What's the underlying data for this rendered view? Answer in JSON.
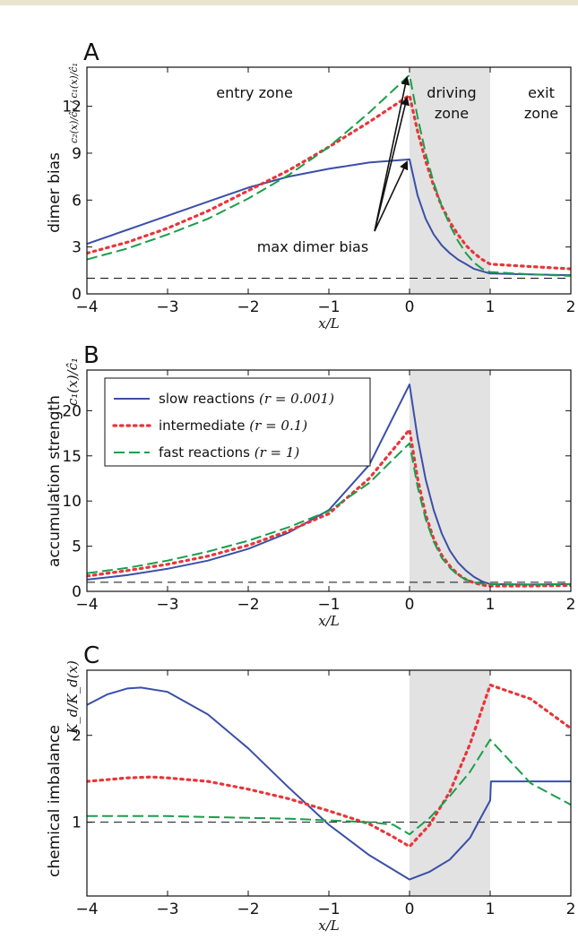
{
  "colors": {
    "slow": "#3a4fa8",
    "intermediate": "#e8353a",
    "fast": "#1a9e4a",
    "shade": "#e2e2e2",
    "top_bar": "#e9e4cf"
  },
  "chart_data": [
    {
      "type": "line",
      "panel": "A",
      "ylabel": "dimer bias",
      "ylabel_math": "c₂(x)/ĉ₂ / c₁(x)/ĉ₁",
      "xlabel": "x/L",
      "xlim": [
        -4,
        2
      ],
      "ylim": [
        0,
        14.5
      ],
      "xticks": [
        "−4",
        "−3",
        "−2",
        "−1",
        "0",
        "1",
        "2"
      ],
      "yticks": [
        "0",
        "3",
        "6",
        "9",
        "12"
      ],
      "ytick_values": [
        0,
        3,
        6,
        9,
        12
      ],
      "shaded_region": [
        0,
        1
      ],
      "reference_line": 1,
      "zone_labels": {
        "entry": "entry zone",
        "driving_1": "driving",
        "driving_2": "zone",
        "exit_1": "exit",
        "exit_2": "zone"
      },
      "annotation": "max dimer bias",
      "series": [
        {
          "key": "slow",
          "x": [
            -4,
            -3.5,
            -3,
            -2.5,
            -2,
            -1.5,
            -1,
            -0.5,
            0,
            0.1,
            0.2,
            0.3,
            0.4,
            0.5,
            0.6,
            0.7,
            0.8,
            0.9,
            1,
            1.5,
            2
          ],
          "values": [
            3.2,
            4.1,
            5.0,
            5.9,
            6.8,
            7.5,
            8.0,
            8.4,
            8.6,
            6.3,
            4.8,
            3.8,
            3.1,
            2.6,
            2.2,
            1.9,
            1.6,
            1.45,
            1.3,
            1.25,
            1.2
          ]
        },
        {
          "key": "intermediate",
          "x": [
            -4,
            -3.5,
            -3,
            -2.5,
            -2,
            -1.5,
            -1,
            -0.5,
            0,
            0.1,
            0.2,
            0.3,
            0.4,
            0.5,
            0.6,
            0.7,
            0.8,
            0.9,
            1,
            1.5,
            2
          ],
          "values": [
            2.6,
            3.3,
            4.2,
            5.3,
            6.6,
            7.9,
            9.4,
            11.0,
            12.7,
            10.4,
            8.5,
            6.9,
            5.6,
            4.6,
            3.8,
            3.1,
            2.6,
            2.2,
            1.9,
            1.75,
            1.6
          ]
        },
        {
          "key": "fast",
          "x": [
            -4,
            -3.5,
            -3,
            -2.5,
            -2,
            -1.5,
            -1,
            -0.5,
            0,
            0.1,
            0.2,
            0.3,
            0.4,
            0.5,
            0.6,
            0.7,
            0.8,
            0.9,
            1,
            1.5,
            2
          ],
          "values": [
            2.2,
            2.9,
            3.8,
            4.8,
            6.1,
            7.6,
            9.4,
            11.6,
            14.0,
            11.3,
            9.0,
            7.1,
            5.6,
            4.4,
            3.4,
            2.6,
            2.0,
            1.6,
            1.4,
            1.25,
            1.15
          ]
        }
      ]
    },
    {
      "type": "line",
      "panel": "B",
      "ylabel": "accumulation strength",
      "ylabel_math": "c₁(x)/ĉ₁",
      "xlabel": "x/L",
      "xlim": [
        -4,
        2
      ],
      "ylim": [
        0,
        24.5
      ],
      "xticks": [
        "−4",
        "−3",
        "−2",
        "−1",
        "0",
        "1",
        "2"
      ],
      "yticks": [
        "0",
        "5",
        "10",
        "15",
        "20"
      ],
      "ytick_values": [
        0,
        5,
        10,
        15,
        20
      ],
      "shaded_region": [
        0,
        1
      ],
      "reference_line": 1,
      "legend": {
        "placement": "top-left",
        "entries": [
          {
            "key": "slow",
            "name": "slow reactions",
            "math": "(r = 0.001)"
          },
          {
            "key": "intermediate",
            "name": "intermediate",
            "math": "(r = 0.1)"
          },
          {
            "key": "fast",
            "name": "fast reactions",
            "math": "(r = 1)"
          }
        ]
      },
      "series": [
        {
          "key": "slow",
          "x": [
            -4,
            -3.5,
            -3,
            -2.5,
            -2,
            -1.5,
            -1,
            -0.5,
            0,
            0.1,
            0.2,
            0.3,
            0.4,
            0.5,
            0.6,
            0.7,
            0.8,
            0.9,
            1,
            1.5,
            2
          ],
          "values": [
            1.3,
            1.8,
            2.5,
            3.4,
            4.7,
            6.5,
            9.0,
            14.0,
            22.9,
            17.0,
            12.4,
            9.0,
            6.4,
            4.5,
            3.2,
            2.3,
            1.6,
            1.1,
            0.8,
            0.75,
            0.8
          ]
        },
        {
          "key": "intermediate",
          "x": [
            -4,
            -3.5,
            -3,
            -2.5,
            -2,
            -1.5,
            -1,
            -0.5,
            0,
            0.1,
            0.2,
            0.3,
            0.4,
            0.5,
            0.6,
            0.7,
            0.8,
            0.9,
            1,
            1.5,
            2
          ],
          "values": [
            1.7,
            2.3,
            3.0,
            3.9,
            5.1,
            6.7,
            8.6,
            12.5,
            17.9,
            12.5,
            8.5,
            5.8,
            4.0,
            2.8,
            1.9,
            1.3,
            0.95,
            0.7,
            0.6,
            0.6,
            0.65
          ]
        },
        {
          "key": "fast",
          "x": [
            -4,
            -3.5,
            -3,
            -2.5,
            -2,
            -1.5,
            -1,
            -0.5,
            0,
            0.1,
            0.2,
            0.3,
            0.4,
            0.5,
            0.6,
            0.7,
            0.8,
            0.9,
            1,
            1.5,
            2
          ],
          "values": [
            2.0,
            2.6,
            3.4,
            4.4,
            5.6,
            7.1,
            8.9,
            12.0,
            16.4,
            11.6,
            8.0,
            5.5,
            3.7,
            2.6,
            1.8,
            1.3,
            1.0,
            0.85,
            0.8,
            0.75,
            0.8
          ]
        }
      ]
    },
    {
      "type": "line",
      "panel": "C",
      "ylabel": "chemical imbalance",
      "ylabel_math": "K_d/K_d(x)",
      "xlabel": "x/L",
      "xlim": [
        -4,
        2
      ],
      "ylim": [
        0.15,
        2.75
      ],
      "xticks": [
        "−4",
        "−3",
        "−2",
        "−1",
        "0",
        "1",
        "2"
      ],
      "yticks": [
        "1",
        "2"
      ],
      "ytick_values": [
        1,
        2
      ],
      "shaded_region": [
        0,
        1
      ],
      "reference_line": 1,
      "series": [
        {
          "key": "slow",
          "x": [
            -4,
            -3.75,
            -3.5,
            -3.33,
            -3.0,
            -2.5,
            -2.0,
            -1.5,
            -1.0,
            -0.5,
            0,
            0.25,
            0.5,
            0.75,
            0.9,
            1.0,
            1.01,
            1.5,
            2
          ],
          "values": [
            2.35,
            2.47,
            2.54,
            2.55,
            2.5,
            2.24,
            1.85,
            1.4,
            0.97,
            0.62,
            0.34,
            0.43,
            0.57,
            0.82,
            1.08,
            1.25,
            1.47,
            1.47,
            1.47
          ]
        },
        {
          "key": "intermediate",
          "x": [
            -4,
            -3.5,
            -3.2,
            -3.0,
            -2.5,
            -2.0,
            -1.5,
            -1.0,
            -0.5,
            -0.2,
            0,
            0.25,
            0.5,
            0.75,
            1.0,
            1.5,
            2
          ],
          "values": [
            1.47,
            1.51,
            1.52,
            1.51,
            1.47,
            1.38,
            1.27,
            1.13,
            0.98,
            0.83,
            0.72,
            0.97,
            1.35,
            1.9,
            2.58,
            2.42,
            2.08
          ]
        },
        {
          "key": "fast",
          "x": [
            -4,
            -3.5,
            -3.0,
            -2.5,
            -2.0,
            -1.5,
            -1.0,
            -0.5,
            -0.2,
            0,
            0.25,
            0.5,
            0.75,
            1.0,
            1.5,
            2
          ],
          "values": [
            1.07,
            1.07,
            1.07,
            1.06,
            1.05,
            1.04,
            1.02,
            1.0,
            0.97,
            0.86,
            1.05,
            1.3,
            1.58,
            1.95,
            1.45,
            1.2
          ]
        }
      ]
    }
  ]
}
